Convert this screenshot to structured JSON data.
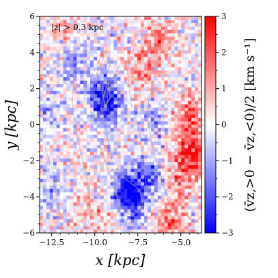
{
  "chart_data": {
    "type": "heatmap",
    "annotation": "|z| > 0.3 kpc",
    "xlabel": "x [kpc]",
    "ylabel": "y [kpc]",
    "xlim": [
      -13.2,
      -3.8
    ],
    "ylim": [
      -6,
      6
    ],
    "xticks": [
      -12.5,
      -10.0,
      -7.5,
      -5.0
    ],
    "xtick_labels": [
      "−12.5",
      "−10.0",
      "−7.5",
      "−5.0"
    ],
    "yticks": [
      -6,
      -4,
      -2,
      0,
      2,
      4,
      6
    ],
    "ytick_labels": [
      "−6",
      "−4",
      "−2",
      "0",
      "2",
      "4",
      "6"
    ],
    "colorbar": {
      "label": "(v̄z,>0 − v̄z,<0)/2 [km s⁻¹]",
      "cmap": "bwr",
      "vmin": -3,
      "vmax": 3,
      "ticks": [
        -3,
        -2,
        -1,
        0,
        1,
        2,
        3
      ],
      "tick_labels": [
        "−3",
        "−2",
        "−1",
        "0",
        "1",
        "2",
        "3"
      ],
      "colors": {
        "low": "#0000ff",
        "mid": "#ffffff",
        "high": "#ff0000"
      }
    },
    "grid": false,
    "features": [
      {
        "x": -9.5,
        "y": 1.7,
        "value": -2.2
      },
      {
        "x": -9.2,
        "y": 0.8,
        "value": -1.5
      },
      {
        "x": -8.0,
        "y": -3.5,
        "value": -2.3
      },
      {
        "x": -7.8,
        "y": -4.3,
        "value": -1.8
      },
      {
        "x": -6.8,
        "y": -2.8,
        "value": -1.2
      },
      {
        "x": -11.3,
        "y": 3.6,
        "value": -1.2
      },
      {
        "x": -12.5,
        "y": -3.5,
        "value": -1.0
      },
      {
        "x": -6.5,
        "y": 0.3,
        "value": -1.0
      },
      {
        "x": -4.3,
        "y": -1.5,
        "value": 2.5
      },
      {
        "x": -4.6,
        "y": 0.5,
        "value": 1.8
      },
      {
        "x": -4.9,
        "y": -3.0,
        "value": 1.6
      },
      {
        "x": -5.6,
        "y": -5.4,
        "value": 1.6
      },
      {
        "x": -7.3,
        "y": 3.0,
        "value": 1.4
      },
      {
        "x": -6.2,
        "y": 4.8,
        "value": 1.4
      },
      {
        "x": -10.5,
        "y": -4.7,
        "value": 1.2
      },
      {
        "x": -11.6,
        "y": 5.2,
        "value": 0.8
      },
      {
        "x": -12.6,
        "y": 1.0,
        "value": -0.5
      }
    ],
    "contours": [
      {
        "level": 1,
        "points": [
          [
            -10.6,
            4.2
          ],
          [
            -11.2,
            3.0
          ],
          [
            -11.3,
            1.2
          ],
          [
            -11.0,
            -0.8
          ],
          [
            -10.5,
            -2.8
          ],
          [
            -10.2,
            -4.8
          ],
          [
            -10.5,
            -6.0
          ]
        ]
      },
      {
        "level": 1,
        "points": [
          [
            -9.3,
            4.1
          ],
          [
            -9.9,
            2.8
          ],
          [
            -10.1,
            1.0
          ],
          [
            -9.8,
            -0.8
          ],
          [
            -9.3,
            -2.3
          ],
          [
            -8.7,
            -3.9
          ],
          [
            -8.5,
            -5.6
          ]
        ]
      },
      {
        "level": 2,
        "points": [
          [
            -9.0,
            3.6
          ],
          [
            -9.5,
            2.3
          ],
          [
            -9.6,
            0.9
          ],
          [
            -9.3,
            -0.5
          ],
          [
            -9.0,
            -2.0
          ]
        ]
      },
      {
        "level": 2,
        "points": [
          [
            -8.6,
            3.2
          ],
          [
            -9.2,
            2.2
          ],
          [
            -9.3,
            1.0
          ],
          [
            -8.9,
            0.1
          ]
        ]
      },
      {
        "level": 3,
        "points": [
          [
            -9.2,
            2.4
          ],
          [
            -9.5,
            1.6
          ],
          [
            -9.4,
            1.0
          ],
          [
            -9.1,
            1.5
          ],
          [
            -9.2,
            2.4
          ]
        ]
      },
      {
        "level": 1,
        "points": [
          [
            -7.6,
            4.6
          ],
          [
            -8.1,
            3.0
          ],
          [
            -7.9,
            1.2
          ],
          [
            -7.4,
            -0.5
          ],
          [
            -7.1,
            -2.2
          ],
          [
            -7.0,
            -3.6
          ]
        ]
      },
      {
        "level": 1,
        "points": [
          [
            -5.7,
            6.0
          ],
          [
            -6.1,
            4.3
          ],
          [
            -6.6,
            2.5
          ],
          [
            -7.0,
            0.6
          ],
          [
            -6.6,
            -1.4
          ],
          [
            -6.1,
            -3.0
          ],
          [
            -5.6,
            -4.7
          ]
        ]
      },
      {
        "level": 1,
        "points": [
          [
            -12.9,
            -1.2
          ],
          [
            -12.4,
            -2.7
          ],
          [
            -12.2,
            -4.3
          ],
          [
            -11.8,
            -5.8
          ]
        ]
      },
      {
        "level": 2,
        "points": [
          [
            -8.7,
            -2.4
          ],
          [
            -8.1,
            -3.1
          ],
          [
            -7.4,
            -3.6
          ],
          [
            -7.2,
            -4.5
          ],
          [
            -7.8,
            -5.1
          ],
          [
            -8.5,
            -4.6
          ],
          [
            -8.9,
            -3.4
          ],
          [
            -8.7,
            -2.4
          ]
        ]
      },
      {
        "level": 1,
        "points": [
          [
            -4.7,
            -5.0
          ],
          [
            -4.3,
            -5.4
          ],
          [
            -4.6,
            -5.7
          ]
        ]
      }
    ]
  }
}
